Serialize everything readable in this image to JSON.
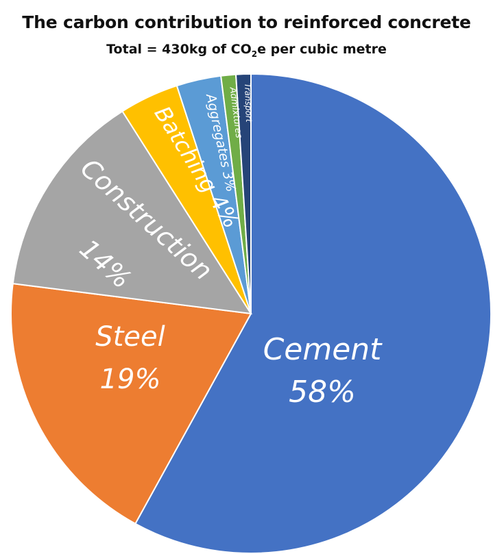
{
  "title": "The carbon contribution to reinforced concrete",
  "subtitle": {
    "prefix": "Total = 430kg of CO",
    "sub": "2",
    "suffix": "e per cubic metre"
  },
  "chart_data": {
    "type": "pie",
    "title": "The carbon contribution to reinforced concrete",
    "subtitle": "Total = 430kg of CO2e per cubic metre",
    "slices": [
      {
        "label": "Cement",
        "value_label": "58%",
        "value": 58,
        "color": "#4472C4"
      },
      {
        "label": "Steel",
        "value_label": "19%",
        "value": 19,
        "color": "#ED7D31"
      },
      {
        "label": "Construction",
        "value_label": "14%",
        "value": 14,
        "color": "#A5A5A5"
      },
      {
        "label": "Batching",
        "value_label": "4%",
        "value": 4,
        "color": "#FFC000"
      },
      {
        "label": "Aggregates",
        "value_label": "3%",
        "value": 3,
        "color": "#5B9BD5"
      },
      {
        "label": "Admixtures",
        "value_label": "",
        "value": 1,
        "color": "#70AD47"
      },
      {
        "label": "Transport",
        "value_label": "",
        "value": 1,
        "color": "#264478"
      }
    ],
    "start_angle_deg": 0,
    "direction": "clockwise"
  }
}
